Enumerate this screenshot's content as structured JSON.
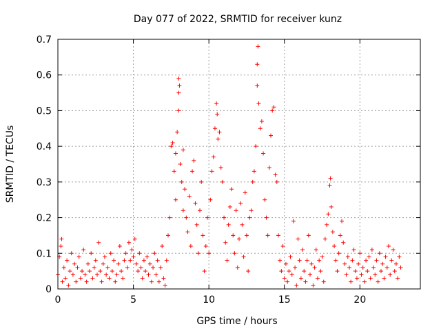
{
  "chart_data": {
    "type": "scatter",
    "title": "Day 077 of 2022, SRMTID for receiver kunz",
    "xlabel": "GPS time / hours",
    "ylabel": "SRMTID / TECUs",
    "xlim": [
      0,
      24
    ],
    "ylim": [
      0,
      0.7
    ],
    "x_ticks": [
      0,
      5,
      10,
      15,
      20
    ],
    "y_ticks": [
      0,
      0.1,
      0.2,
      0.3,
      0.4,
      0.5,
      0.6,
      0.7
    ],
    "x_tick_labels": [
      "0",
      "5",
      "10",
      "15",
      "20"
    ],
    "y_tick_labels": [
      "0",
      "0.1",
      "0.2",
      "0.3",
      "0.4",
      "0.5",
      "0.6",
      "0.7"
    ],
    "grid": true,
    "marker": "+",
    "series": [
      {
        "name": "SRMTID",
        "color": "#ff0000",
        "points": [
          [
            0.0,
            0.04
          ],
          [
            0.1,
            0.09
          ],
          [
            0.2,
            0.12
          ],
          [
            0.25,
            0.14
          ],
          [
            0.3,
            0.02
          ],
          [
            0.4,
            0.06
          ],
          [
            0.5,
            0.03
          ],
          [
            0.6,
            0.08
          ],
          [
            0.7,
            0.01
          ],
          [
            0.8,
            0.05
          ],
          [
            0.9,
            0.1
          ],
          [
            1.0,
            0.04
          ],
          [
            1.1,
            0.07
          ],
          [
            1.2,
            0.02
          ],
          [
            1.3,
            0.06
          ],
          [
            1.4,
            0.09
          ],
          [
            1.5,
            0.03
          ],
          [
            1.6,
            0.05
          ],
          [
            1.7,
            0.11
          ],
          [
            1.8,
            0.04
          ],
          [
            1.9,
            0.02
          ],
          [
            2.0,
            0.07
          ],
          [
            2.1,
            0.05
          ],
          [
            2.2,
            0.1
          ],
          [
            2.3,
            0.03
          ],
          [
            2.4,
            0.06
          ],
          [
            2.5,
            0.08
          ],
          [
            2.6,
            0.04
          ],
          [
            2.7,
            0.13
          ],
          [
            2.8,
            0.05
          ],
          [
            2.9,
            0.02
          ],
          [
            3.0,
            0.07
          ],
          [
            3.1,
            0.09
          ],
          [
            3.2,
            0.04
          ],
          [
            3.3,
            0.06
          ],
          [
            3.4,
            0.03
          ],
          [
            3.5,
            0.1
          ],
          [
            3.6,
            0.05
          ],
          [
            3.7,
            0.08
          ],
          [
            3.8,
            0.02
          ],
          [
            3.9,
            0.04
          ],
          [
            4.0,
            0.07
          ],
          [
            4.1,
            0.12
          ],
          [
            4.2,
            0.05
          ],
          [
            4.3,
            0.03
          ],
          [
            4.4,
            0.08
          ],
          [
            4.5,
            0.1
          ],
          [
            4.6,
            0.06
          ],
          [
            4.7,
            0.13
          ],
          [
            4.8,
            0.08
          ],
          [
            4.9,
            0.11
          ],
          [
            5.0,
            0.09
          ],
          [
            5.1,
            0.14
          ],
          [
            5.2,
            0.07
          ],
          [
            5.3,
            0.05
          ],
          [
            5.4,
            0.1
          ],
          [
            5.5,
            0.06
          ],
          [
            5.6,
            0.03
          ],
          [
            5.7,
            0.08
          ],
          [
            5.8,
            0.05
          ],
          [
            5.9,
            0.09
          ],
          [
            6.0,
            0.04
          ],
          [
            6.1,
            0.07
          ],
          [
            6.2,
            0.02
          ],
          [
            6.3,
            0.06
          ],
          [
            6.4,
            0.1
          ],
          [
            6.5,
            0.04
          ],
          [
            6.6,
            0.08
          ],
          [
            6.7,
            0.02
          ],
          [
            6.8,
            0.06
          ],
          [
            6.9,
            0.12
          ],
          [
            7.0,
            0.03
          ],
          [
            7.1,
            0.01
          ],
          [
            7.2,
            0.08
          ],
          [
            7.3,
            0.15
          ],
          [
            7.4,
            0.2
          ],
          [
            7.5,
            0.4
          ],
          [
            7.6,
            0.41
          ],
          [
            7.7,
            0.33
          ],
          [
            7.8,
            0.38
          ],
          [
            7.8,
            0.25
          ],
          [
            7.9,
            0.44
          ],
          [
            8.0,
            0.55
          ],
          [
            8.0,
            0.59
          ],
          [
            8.0,
            0.5
          ],
          [
            8.05,
            0.57
          ],
          [
            8.1,
            0.35
          ],
          [
            8.2,
            0.3
          ],
          [
            8.3,
            0.39
          ],
          [
            8.3,
            0.22
          ],
          [
            8.4,
            0.28
          ],
          [
            8.5,
            0.2
          ],
          [
            8.6,
            0.16
          ],
          [
            8.7,
            0.26
          ],
          [
            8.8,
            0.12
          ],
          [
            8.9,
            0.33
          ],
          [
            9.0,
            0.36
          ],
          [
            9.1,
            0.24
          ],
          [
            9.2,
            0.18
          ],
          [
            9.3,
            0.1
          ],
          [
            9.4,
            0.22
          ],
          [
            9.5,
            0.3
          ],
          [
            9.6,
            0.15
          ],
          [
            9.7,
            0.05
          ],
          [
            9.8,
            0.12
          ],
          [
            9.9,
            0.2
          ],
          [
            10.0,
            0.1
          ],
          [
            10.1,
            0.25
          ],
          [
            10.2,
            0.33
          ],
          [
            10.3,
            0.37
          ],
          [
            10.4,
            0.45
          ],
          [
            10.5,
            0.52
          ],
          [
            10.55,
            0.49
          ],
          [
            10.6,
            0.42
          ],
          [
            10.7,
            0.44
          ],
          [
            10.8,
            0.34
          ],
          [
            10.9,
            0.3
          ],
          [
            11.0,
            0.2
          ],
          [
            11.1,
            0.13
          ],
          [
            11.2,
            0.08
          ],
          [
            11.3,
            0.18
          ],
          [
            11.4,
            0.23
          ],
          [
            11.5,
            0.28
          ],
          [
            11.6,
            0.15
          ],
          [
            11.7,
            0.1
          ],
          [
            11.8,
            0.22
          ],
          [
            11.9,
            0.06
          ],
          [
            12.0,
            0.14
          ],
          [
            12.1,
            0.24
          ],
          [
            12.2,
            0.18
          ],
          [
            12.3,
            0.09
          ],
          [
            12.4,
            0.27
          ],
          [
            12.5,
            0.15
          ],
          [
            12.6,
            0.05
          ],
          [
            12.7,
            0.2
          ],
          [
            12.8,
            0.22
          ],
          [
            12.9,
            0.3
          ],
          [
            13.0,
            0.33
          ],
          [
            13.1,
            0.4
          ],
          [
            13.2,
            0.57
          ],
          [
            13.2,
            0.63
          ],
          [
            13.25,
            0.68
          ],
          [
            13.3,
            0.52
          ],
          [
            13.4,
            0.45
          ],
          [
            13.5,
            0.47
          ],
          [
            13.6,
            0.38
          ],
          [
            13.7,
            0.25
          ],
          [
            13.8,
            0.2
          ],
          [
            13.9,
            0.15
          ],
          [
            14.0,
            0.34
          ],
          [
            14.1,
            0.43
          ],
          [
            14.2,
            0.5
          ],
          [
            14.3,
            0.51
          ],
          [
            14.4,
            0.32
          ],
          [
            14.5,
            0.3
          ],
          [
            14.6,
            0.15
          ],
          [
            14.7,
            0.08
          ],
          [
            14.8,
            0.05
          ],
          [
            14.9,
            0.12
          ],
          [
            15.0,
            0.03
          ],
          [
            15.1,
            0.07
          ],
          [
            15.2,
            0.02
          ],
          [
            15.3,
            0.05
          ],
          [
            15.4,
            0.09
          ],
          [
            15.5,
            0.04
          ],
          [
            15.6,
            0.19
          ],
          [
            15.7,
            0.06
          ],
          [
            15.8,
            0.01
          ],
          [
            15.9,
            0.14
          ],
          [
            16.0,
            0.08
          ],
          [
            16.1,
            0.03
          ],
          [
            16.2,
            0.11
          ],
          [
            16.3,
            0.05
          ],
          [
            16.4,
            0.02
          ],
          [
            16.5,
            0.08
          ],
          [
            16.6,
            0.15
          ],
          [
            16.7,
            0.04
          ],
          [
            16.8,
            0.07
          ],
          [
            16.9,
            0.01
          ],
          [
            17.0,
            0.06
          ],
          [
            17.1,
            0.11
          ],
          [
            17.2,
            0.03
          ],
          [
            17.3,
            0.08
          ],
          [
            17.4,
            0.05
          ],
          [
            17.5,
            0.09
          ],
          [
            17.6,
            0.02
          ],
          [
            17.7,
            0.14
          ],
          [
            17.8,
            0.18
          ],
          [
            17.9,
            0.21
          ],
          [
            18.0,
            0.29
          ],
          [
            18.05,
            0.31
          ],
          [
            18.1,
            0.23
          ],
          [
            18.2,
            0.16
          ],
          [
            18.3,
            0.12
          ],
          [
            18.4,
            0.08
          ],
          [
            18.5,
            0.05
          ],
          [
            18.6,
            0.1
          ],
          [
            18.7,
            0.15
          ],
          [
            18.8,
            0.19
          ],
          [
            18.9,
            0.13
          ],
          [
            19.0,
            0.07
          ],
          [
            19.1,
            0.04
          ],
          [
            19.2,
            0.09
          ],
          [
            19.3,
            0.06
          ],
          [
            19.4,
            0.02
          ],
          [
            19.5,
            0.08
          ],
          [
            19.6,
            0.11
          ],
          [
            19.7,
            0.05
          ],
          [
            19.8,
            0.03
          ],
          [
            19.9,
            0.07
          ],
          [
            20.0,
            0.1
          ],
          [
            20.1,
            0.04
          ],
          [
            20.2,
            0.06
          ],
          [
            20.3,
            0.02
          ],
          [
            20.4,
            0.08
          ],
          [
            20.5,
            0.05
          ],
          [
            20.6,
            0.09
          ],
          [
            20.7,
            0.03
          ],
          [
            20.8,
            0.11
          ],
          [
            20.9,
            0.06
          ],
          [
            21.0,
            0.04
          ],
          [
            21.1,
            0.08
          ],
          [
            21.2,
            0.02
          ],
          [
            21.3,
            0.1
          ],
          [
            21.4,
            0.05
          ],
          [
            21.5,
            0.07
          ],
          [
            21.6,
            0.03
          ],
          [
            21.7,
            0.09
          ],
          [
            21.8,
            0.06
          ],
          [
            21.9,
            0.12
          ],
          [
            22.0,
            0.04
          ],
          [
            22.1,
            0.08
          ],
          [
            22.2,
            0.11
          ],
          [
            22.3,
            0.05
          ],
          [
            22.4,
            0.07
          ],
          [
            22.5,
            0.03
          ],
          [
            22.6,
            0.09
          ],
          [
            22.7,
            0.06
          ]
        ]
      }
    ]
  }
}
